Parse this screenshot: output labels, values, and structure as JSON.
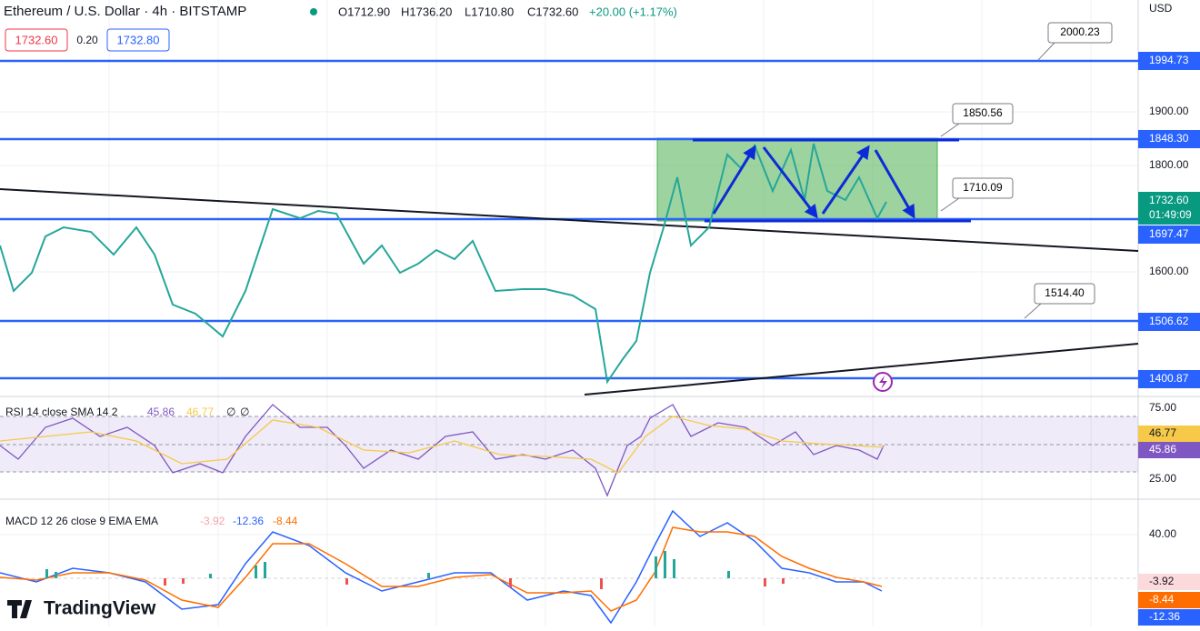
{
  "header": {
    "title": "Ethereum / U.S. Dollar · 4h · BITSTAMP",
    "open": "O1712.90",
    "high": "H1736.20",
    "low": "L1710.80",
    "close": "C1732.60",
    "change": "+20.00 (+1.17%)",
    "bid": "1732.60",
    "spread": "0.20",
    "ask": "1732.80"
  },
  "price_axis": {
    "currency": "USD",
    "labels": [
      "1994.73",
      "1900.00",
      "1848.30",
      "1800.00",
      "1732.60",
      "01:49:09",
      "1697.47",
      "1600.00",
      "1506.62",
      "1400.87"
    ]
  },
  "callouts": [
    "2000.23",
    "1850.56",
    "1710.09",
    "1514.40"
  ],
  "rsi": {
    "legend": "RSI 14 close SMA 14 2",
    "value": "45.86",
    "sma": "46.77",
    "extra1": "∅",
    "extra2": "∅",
    "axis": [
      "75.00",
      "46.77",
      "45.86",
      "25.00"
    ]
  },
  "macd": {
    "legend": "MACD 12 26 close 9 EMA EMA",
    "histogram": "-3.92",
    "macd": "-12.36",
    "signal": "-8.44",
    "axis": [
      "40.00",
      "-3.92",
      "-8.44",
      "-12.36"
    ]
  },
  "logo": "TradingView"
}
